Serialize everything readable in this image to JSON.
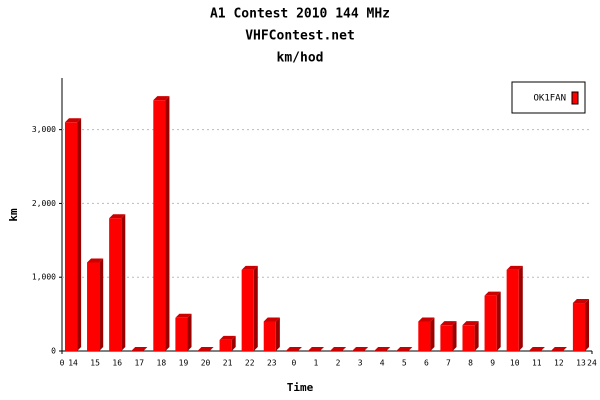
{
  "chart_data": {
    "type": "bar",
    "title": "A1 Contest 2010 144 MHz",
    "subtitle": "VHFContest.net",
    "unit_title": "km/hod",
    "x_label": "Time",
    "y_label": "km",
    "categories": [
      "14",
      "15",
      "16",
      "17",
      "18",
      "19",
      "20",
      "21",
      "22",
      "23",
      "0",
      "1",
      "2",
      "3",
      "4",
      "5",
      "6",
      "7",
      "8",
      "9",
      "10",
      "11",
      "12",
      "13"
    ],
    "series": [
      {
        "name": "OK1FAN",
        "color": "#ff0000",
        "values": [
          3100,
          1200,
          1800,
          0,
          3400,
          450,
          0,
          150,
          1100,
          400,
          0,
          0,
          0,
          0,
          0,
          0,
          400,
          350,
          350,
          750,
          1100,
          0,
          0,
          650
        ]
      }
    ],
    "xlim": [
      0,
      24
    ],
    "xticks": [
      0,
      24
    ],
    "ylim": [
      0,
      3700
    ],
    "yticks": [
      0,
      {
        "value": 1000,
        "label": "1,000"
      },
      {
        "value": 2000,
        "label": "2,000"
      },
      {
        "value": 3000,
        "label": "3,000"
      }
    ],
    "grid": true,
    "legend": "top-right"
  }
}
